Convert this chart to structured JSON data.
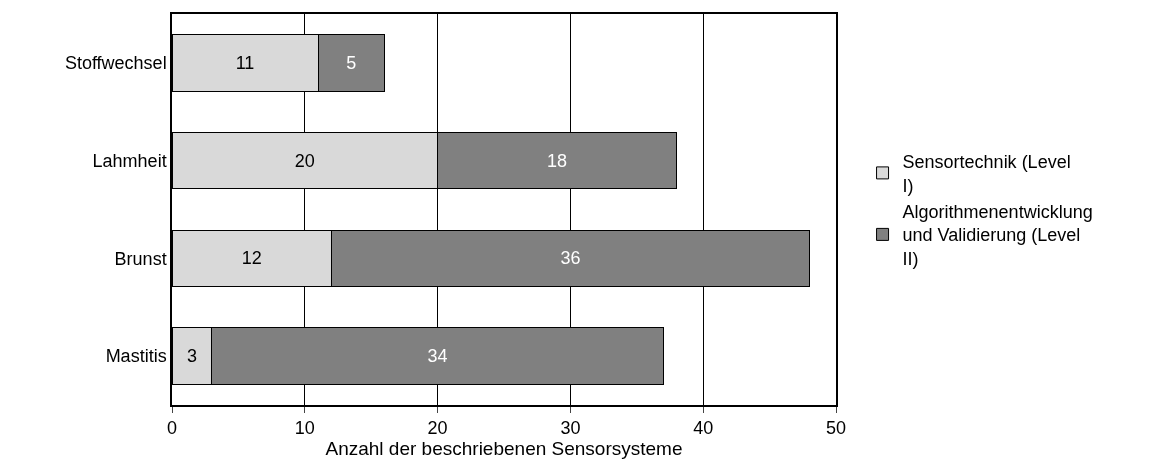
{
  "chart_data": {
    "type": "bar",
    "orientation": "horizontal",
    "stacked": true,
    "xlabel": "Anzahl der beschriebenen Sensorsysteme",
    "categories": [
      "Stoffwechsel",
      "Lahmheit",
      "Brunst",
      "Mastitis"
    ],
    "series": [
      {
        "name": "Sensortechnik (Level I)",
        "color": "#d9d9d9",
        "values": [
          11,
          20,
          12,
          3
        ]
      },
      {
        "name": "Algorithmenentwicklung und Validierung (Level II)",
        "color": "#808080",
        "values": [
          5,
          18,
          36,
          34
        ]
      }
    ],
    "xlim": [
      0,
      50
    ],
    "xticks": [
      0,
      10,
      20,
      30,
      40,
      50
    ],
    "grid": "x",
    "legend": "right",
    "data_labels": true
  }
}
